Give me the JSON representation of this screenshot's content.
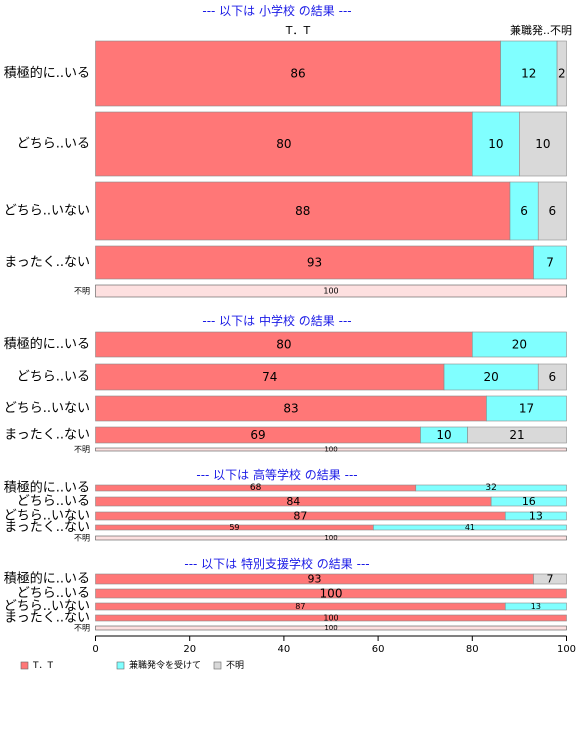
{
  "colors": {
    "tt": "#ff7777",
    "kenshoku": "#80ffff",
    "fumei": "#d9d9d9",
    "title": "#1a1ae6"
  },
  "column_headers": {
    "tt": "T．T",
    "rest": "兼職発..不明"
  },
  "chart_data": {
    "type": "bar",
    "orientation": "horizontal",
    "stacked": "percent",
    "xlim": [
      0,
      100
    ],
    "xticks": [
      0,
      20,
      40,
      60,
      80,
      100
    ],
    "series_names": [
      "T．T",
      "兼職発令を受けて",
      "不明"
    ],
    "panels": [
      {
        "title": "--- 以下は 小学校 の結果 ---",
        "rows": [
          {
            "label": "積極的に..いる",
            "values": [
              86,
              12,
              2
            ]
          },
          {
            "label": "どちら..いる",
            "values": [
              80,
              10,
              10
            ]
          },
          {
            "label": "どちら..いない",
            "values": [
              88,
              6,
              6
            ]
          },
          {
            "label": "まったく..ない",
            "values": [
              93,
              7,
              0
            ]
          },
          {
            "label": "不明",
            "values": [
              0,
              0,
              100
            ]
          }
        ]
      },
      {
        "title": "--- 以下は 中学校 の結果 ---",
        "rows": [
          {
            "label": "積極的に..いる",
            "values": [
              80,
              20,
              0
            ]
          },
          {
            "label": "どちら..いる",
            "values": [
              74,
              20,
              6
            ]
          },
          {
            "label": "どちら..いない",
            "values": [
              83,
              17,
              0
            ]
          },
          {
            "label": "まったく..ない",
            "values": [
              69,
              10,
              21
            ]
          },
          {
            "label": "不明",
            "values": [
              0,
              0,
              100
            ]
          }
        ]
      },
      {
        "title": "--- 以下は 高等学校 の結果 ---",
        "rows": [
          {
            "label": "積極的に..いる",
            "values": [
              68,
              32,
              0
            ]
          },
          {
            "label": "どちら..いる",
            "values": [
              84,
              16,
              0
            ]
          },
          {
            "label": "どちら..いない",
            "values": [
              87,
              13,
              0
            ]
          },
          {
            "label": "まったく..ない",
            "values": [
              59,
              41,
              0
            ]
          },
          {
            "label": "不明",
            "values": [
              0,
              0,
              100
            ]
          }
        ]
      },
      {
        "title": "--- 以下は 特別支援学校 の結果 ---",
        "rows": [
          {
            "label": "積極的に..いる",
            "values": [
              93,
              0,
              7
            ]
          },
          {
            "label": "どちら..いる",
            "values": [
              100,
              0,
              0
            ]
          },
          {
            "label": "どちら..いない",
            "values": [
              87,
              13,
              0
            ]
          },
          {
            "label": "まったく..ない",
            "values": [
              100,
              0,
              0
            ]
          },
          {
            "label": "不明",
            "values": [
              0,
              0,
              100
            ]
          }
        ]
      }
    ]
  }
}
